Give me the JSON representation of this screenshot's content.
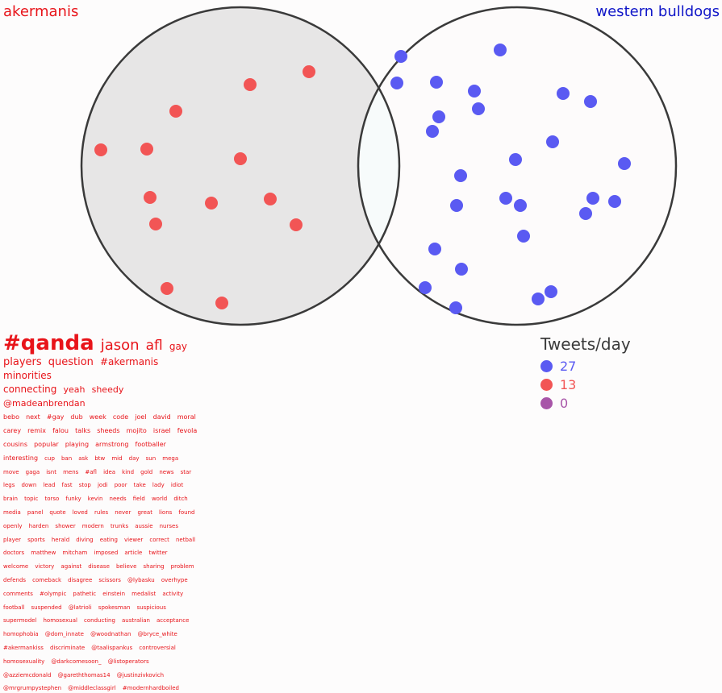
{
  "sets": {
    "left": {
      "label": "akermanis",
      "color": "#e8141a"
    },
    "right": {
      "label": "western bulldogs",
      "color": "#1016c8"
    }
  },
  "colors": {
    "left_fill": "#e7e6e6",
    "right_fill": "#fdfbfb",
    "intersection_fill": "#f7fbfb",
    "stroke": "#3a3a3a"
  },
  "points": {
    "left": {
      "color": "#f25555",
      "count": 15
    },
    "right": {
      "color": "#5a5af2",
      "count": 30
    }
  },
  "word_cloud": [
    {
      "w": "#qanda",
      "s": 26,
      "b": true
    },
    {
      "w": "jason",
      "s": 18
    },
    {
      "w": "afl",
      "s": 17
    },
    {
      "w": "gay",
      "s": 12
    },
    {
      "br": true
    },
    {
      "w": "players",
      "s": 13
    },
    {
      "w": "question",
      "s": 13
    },
    {
      "w": "#akermanis",
      "s": 12
    },
    {
      "w": "minorities",
      "s": 12
    },
    {
      "br": true
    },
    {
      "w": "connecting",
      "s": 12
    },
    {
      "w": "yeah",
      "s": 11
    },
    {
      "w": "sheedy",
      "s": 11
    },
    {
      "w": "@madeanbrendan",
      "s": 11
    },
    {
      "br": true
    },
    {
      "w": "bebo",
      "s": 8
    },
    {
      "w": "next",
      "s": 8
    },
    {
      "w": "#gay",
      "s": 8
    },
    {
      "w": "dub",
      "s": 8
    },
    {
      "w": "week",
      "s": 8
    },
    {
      "w": "code",
      "s": 8
    },
    {
      "w": "joel",
      "s": 8
    },
    {
      "w": "david",
      "s": 8
    },
    {
      "w": "moral",
      "s": 8
    },
    {
      "w": "carey",
      "s": 8
    },
    {
      "w": "remix",
      "s": 8
    },
    {
      "w": "falou",
      "s": 8
    },
    {
      "w": "talks",
      "s": 8
    },
    {
      "w": "sheeds",
      "s": 8
    },
    {
      "w": "mojito",
      "s": 8
    },
    {
      "w": "israel",
      "s": 8
    },
    {
      "w": "fevola",
      "s": 8
    },
    {
      "w": "cousins",
      "s": 8
    },
    {
      "w": "popular",
      "s": 8
    },
    {
      "w": "playing",
      "s": 8
    },
    {
      "w": "armstrong",
      "s": 8
    },
    {
      "w": "footballer",
      "s": 8
    },
    {
      "w": "interesting",
      "s": 8
    },
    {
      "w": "cup",
      "s": 7
    },
    {
      "w": "ban",
      "s": 7
    },
    {
      "w": "ask",
      "s": 7
    },
    {
      "w": "btw",
      "s": 7
    },
    {
      "w": "mid",
      "s": 7
    },
    {
      "w": "day",
      "s": 7
    },
    {
      "w": "sun",
      "s": 7
    },
    {
      "w": "mega",
      "s": 7
    },
    {
      "w": "move",
      "s": 7
    },
    {
      "w": "gaga",
      "s": 7
    },
    {
      "w": "isnt",
      "s": 7
    },
    {
      "w": "mens",
      "s": 7
    },
    {
      "w": "#afl",
      "s": 7
    },
    {
      "w": "idea",
      "s": 7
    },
    {
      "w": "kind",
      "s": 7
    },
    {
      "w": "gold",
      "s": 7
    },
    {
      "w": "news",
      "s": 7
    },
    {
      "w": "star",
      "s": 7
    },
    {
      "w": "legs",
      "s": 7
    },
    {
      "w": "down",
      "s": 7
    },
    {
      "w": "lead",
      "s": 7
    },
    {
      "w": "fast",
      "s": 7
    },
    {
      "w": "stop",
      "s": 7
    },
    {
      "w": "jodi",
      "s": 7
    },
    {
      "w": "poor",
      "s": 7
    },
    {
      "w": "take",
      "s": 7
    },
    {
      "w": "lady",
      "s": 7
    },
    {
      "w": "idiot",
      "s": 7
    },
    {
      "w": "brain",
      "s": 7
    },
    {
      "w": "topic",
      "s": 7
    },
    {
      "w": "torso",
      "s": 7
    },
    {
      "w": "funky",
      "s": 7
    },
    {
      "w": "kevin",
      "s": 7
    },
    {
      "w": "needs",
      "s": 7
    },
    {
      "w": "field",
      "s": 7
    },
    {
      "w": "world",
      "s": 7
    },
    {
      "w": "ditch",
      "s": 7
    },
    {
      "w": "media",
      "s": 7
    },
    {
      "w": "panel",
      "s": 7
    },
    {
      "w": "quote",
      "s": 7
    },
    {
      "w": "loved",
      "s": 7
    },
    {
      "w": "rules",
      "s": 7
    },
    {
      "w": "never",
      "s": 7
    },
    {
      "w": "great",
      "s": 7
    },
    {
      "w": "lions",
      "s": 7
    },
    {
      "w": "found",
      "s": 7
    },
    {
      "w": "openly",
      "s": 7
    },
    {
      "w": "harden",
      "s": 7
    },
    {
      "w": "shower",
      "s": 7
    },
    {
      "w": "modern",
      "s": 7
    },
    {
      "w": "trunks",
      "s": 7
    },
    {
      "w": "aussie",
      "s": 7
    },
    {
      "w": "nurses",
      "s": 7
    },
    {
      "w": "player",
      "s": 7
    },
    {
      "w": "sports",
      "s": 7
    },
    {
      "w": "herald",
      "s": 7
    },
    {
      "w": "diving",
      "s": 7
    },
    {
      "w": "eating",
      "s": 7
    },
    {
      "w": "viewer",
      "s": 7
    },
    {
      "w": "correct",
      "s": 7
    },
    {
      "w": "netball",
      "s": 7
    },
    {
      "w": "doctors",
      "s": 7
    },
    {
      "w": "matthew",
      "s": 7
    },
    {
      "w": "mitcham",
      "s": 7
    },
    {
      "w": "imposed",
      "s": 7
    },
    {
      "w": "article",
      "s": 7
    },
    {
      "w": "twitter",
      "s": 7
    },
    {
      "w": "welcome",
      "s": 7
    },
    {
      "w": "victory",
      "s": 7
    },
    {
      "w": "against",
      "s": 7
    },
    {
      "w": "disease",
      "s": 7
    },
    {
      "w": "believe",
      "s": 7
    },
    {
      "w": "sharing",
      "s": 7
    },
    {
      "w": "problem",
      "s": 7
    },
    {
      "w": "defends",
      "s": 7
    },
    {
      "w": "comeback",
      "s": 7
    },
    {
      "w": "disagree",
      "s": 7
    },
    {
      "w": "scissors",
      "s": 7
    },
    {
      "w": "@lybasku",
      "s": 7
    },
    {
      "w": "overhype",
      "s": 7
    },
    {
      "w": "comments",
      "s": 7
    },
    {
      "w": "#olympic",
      "s": 7
    },
    {
      "w": "pathetic",
      "s": 7
    },
    {
      "w": "einstein",
      "s": 7
    },
    {
      "w": "medalist",
      "s": 7
    },
    {
      "w": "activity",
      "s": 7
    },
    {
      "w": "football",
      "s": 7
    },
    {
      "w": "suspended",
      "s": 7
    },
    {
      "w": "@latrioli",
      "s": 7
    },
    {
      "w": "spokesman",
      "s": 7
    },
    {
      "w": "suspicious",
      "s": 7
    },
    {
      "w": "supermodel",
      "s": 7
    },
    {
      "w": "homosexual",
      "s": 7
    },
    {
      "w": "conducting",
      "s": 7
    },
    {
      "w": "australian",
      "s": 7
    },
    {
      "w": "acceptance",
      "s": 7
    },
    {
      "w": "homophobia",
      "s": 7
    },
    {
      "w": "@dom_innate",
      "s": 7
    },
    {
      "w": "@woodnathan",
      "s": 7
    },
    {
      "w": "@bryce_white",
      "s": 7
    },
    {
      "w": "#akermankiss",
      "s": 7
    },
    {
      "w": "discriminate",
      "s": 7
    },
    {
      "w": "@taalispankus",
      "s": 7
    },
    {
      "w": "controversial",
      "s": 7
    },
    {
      "w": "homosexuality",
      "s": 7
    },
    {
      "w": "@darkcomesoon_",
      "s": 7
    },
    {
      "w": "@listoperators",
      "s": 7
    },
    {
      "w": "@azziemcdonald",
      "s": 7
    },
    {
      "w": "@gareththomas14",
      "s": 7
    },
    {
      "w": "@justinzivkovich",
      "s": 7
    },
    {
      "w": "@mrgrumpystephen",
      "s": 7
    },
    {
      "w": "@middleclassgirl",
      "s": 7
    },
    {
      "w": "#modernhardboiled",
      "s": 7
    }
  ],
  "legend": {
    "title": "Tweets/day",
    "items": [
      {
        "label": "27",
        "color": "#5a5af2"
      },
      {
        "label": "13",
        "color": "#f25555"
      },
      {
        "label": "0",
        "color": "#a855a8"
      }
    ]
  }
}
